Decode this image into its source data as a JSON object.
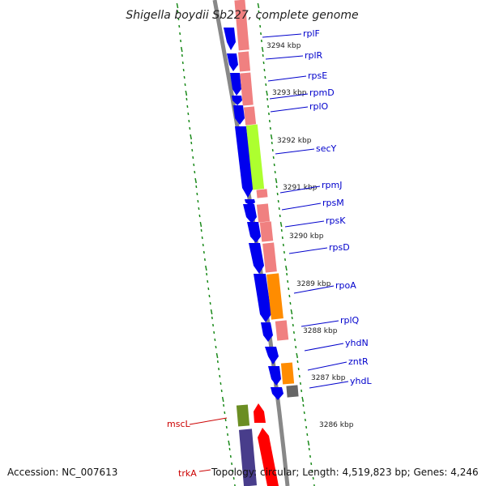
{
  "title": "Shigella boydii Sb227, complete genome",
  "accession": "Accession: NC_007613",
  "topology": "Topology: circular; Length: 4,519,823 bp; Genes: 4,246",
  "colors": {
    "cds_forward": "#0000ee",
    "cds_reverse": "#ff0000",
    "ribosomal": "#f08080",
    "translocase": "#adff2f",
    "rna_polymerase": "#ff8c00",
    "other": "#666666",
    "mscL_box": "#6b8e23",
    "trkA_box": "#483d8b",
    "backbone": "#888888",
    "tick": "#1a8a1a",
    "label_forward": "#0000cc",
    "label_reverse": "#cc0000"
  },
  "scale_labels": [
    "3294 kbp",
    "3293 kbp",
    "3292 kbp",
    "3291 kbp",
    "3290 kbp",
    "3289 kbp",
    "3288 kbp",
    "3287 kbp",
    "3286 kbp"
  ],
  "genes_forward": [
    "rplF",
    "rplR",
    "rpsE",
    "rpmD",
    "rplO",
    "secY",
    "rpmJ",
    "rpsM",
    "rpsK",
    "rpsD",
    "rpoA",
    "rplQ",
    "yhdN",
    "zntR",
    "yhdL"
  ],
  "genes_reverse": [
    "mscL",
    "trkA"
  ]
}
